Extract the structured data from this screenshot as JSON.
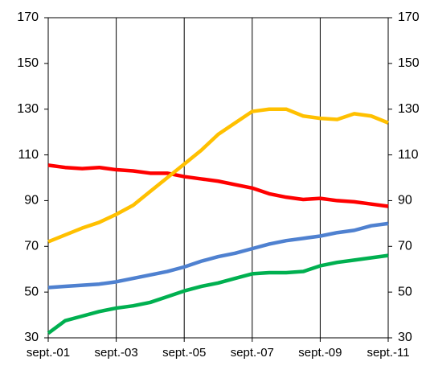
{
  "chart_data": {
    "type": "line",
    "categories": [
      "sept.-01",
      null,
      null,
      null,
      "sept.-03",
      null,
      null,
      null,
      "sept.-05",
      null,
      null,
      null,
      "sept.-07",
      null,
      null,
      null,
      "sept.-09",
      null,
      null,
      null,
      "sept.-11"
    ],
    "series": [
      {
        "color": "#ff0000",
        "values": [
          105.5,
          104.5,
          104,
          104.5,
          103.5,
          103,
          102,
          102,
          100.5,
          99.5,
          98.5,
          97,
          95.5,
          93,
          91.5,
          90.5,
          91,
          90,
          89.5,
          88.5,
          87.5
        ]
      },
      {
        "color": "#ffc000",
        "values": [
          72,
          75,
          78,
          80.5,
          84,
          88,
          94,
          100,
          106,
          112,
          119,
          124,
          129,
          130,
          130,
          127,
          126,
          125.5,
          128,
          127,
          124
        ]
      },
      {
        "color": "#4f81d0",
        "values": [
          52,
          52.5,
          53,
          53.5,
          54.5,
          56,
          57.5,
          59,
          61,
          63.5,
          65.5,
          67,
          69,
          71,
          72.5,
          73.5,
          74.5,
          76,
          77,
          79,
          80
        ]
      },
      {
        "color": "#00b050",
        "values": [
          32,
          37.5,
          39.5,
          41.5,
          43,
          44,
          45.5,
          48,
          50.5,
          52.5,
          54,
          56,
          58,
          58.5,
          58.5,
          59,
          61.5,
          63,
          64,
          65,
          66
        ]
      }
    ],
    "ylim": [
      30,
      170
    ],
    "yticks": [
      30,
      50,
      70,
      90,
      110,
      130,
      150,
      170
    ],
    "xgrid": true
  }
}
